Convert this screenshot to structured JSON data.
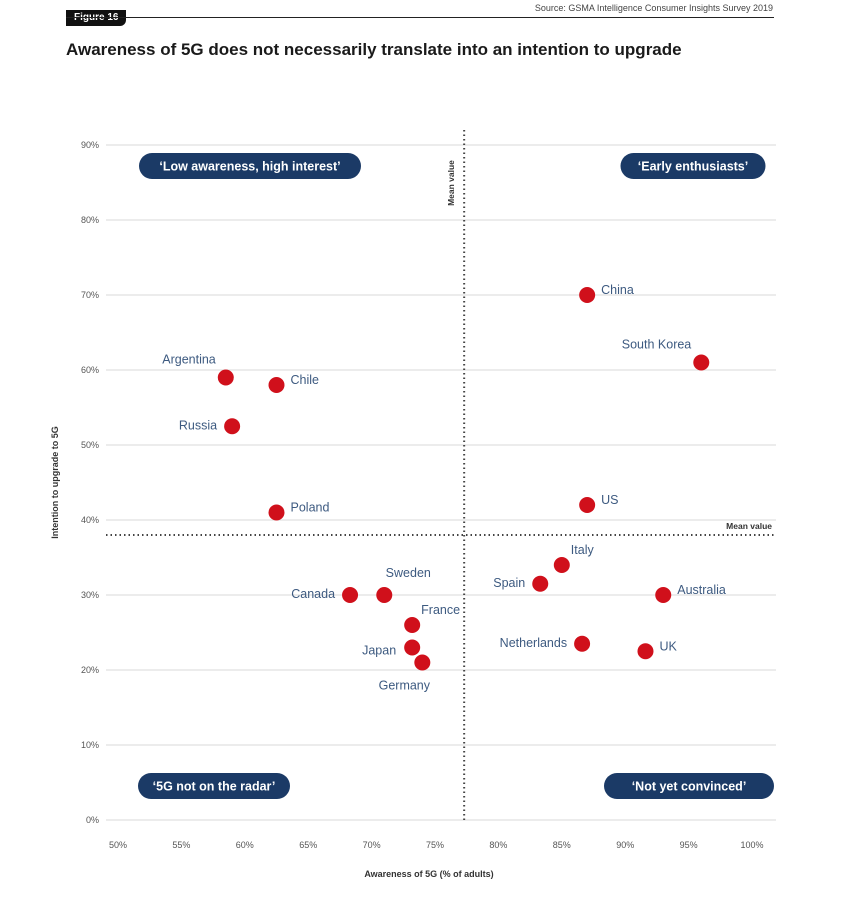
{
  "figure_badge": "Figure 16",
  "source": "Source: GSMA Intelligence Consumer Insights Survey 2019",
  "title": "Awareness of 5G does not necessarily translate into an intention to upgrade",
  "colors": {
    "point": "#d0101b",
    "label": "#3d5a80",
    "pill": "#1b3a66",
    "grid": "#d9d9d9"
  },
  "chart_data": {
    "type": "scatter",
    "title": "Awareness of 5G does not necessarily translate into an intention to upgrade",
    "xlabel": "Awareness of 5G (% of adults)",
    "ylabel": "Intention to upgrade to 5G",
    "xlim": [
      50,
      100
    ],
    "ylim": [
      0,
      90
    ],
    "x_ticks": [
      50,
      55,
      60,
      65,
      70,
      75,
      80,
      85,
      90,
      95,
      100
    ],
    "x_tick_labels": [
      "50%",
      "55%",
      "60%",
      "65%",
      "70%",
      "75%",
      "80%",
      "85%",
      "90%",
      "95%",
      "100%"
    ],
    "y_ticks": [
      0,
      10,
      20,
      30,
      40,
      50,
      60,
      70,
      80,
      90
    ],
    "y_tick_labels": [
      "0%",
      "10%",
      "20%",
      "30%",
      "40%",
      "50%",
      "60%",
      "70%",
      "80%",
      "90%"
    ],
    "grid": "horizontal",
    "mean_x": 77.3,
    "mean_y": 38,
    "mean_label": "Mean value",
    "quadrants": [
      {
        "label": "‘Low awareness, high interest’",
        "position": "top-left"
      },
      {
        "label": "‘Early enthusiasts’",
        "position": "top-right"
      },
      {
        "label": "‘5G not on the radar’",
        "position": "bottom-left"
      },
      {
        "label": "‘Not yet convinced’",
        "position": "bottom-right"
      }
    ],
    "points": [
      {
        "name": "China",
        "x": 87,
        "y": 70,
        "label_side": "right"
      },
      {
        "name": "South Korea",
        "x": 96,
        "y": 61,
        "label_side": "left-above"
      },
      {
        "name": "US",
        "x": 87,
        "y": 42,
        "label_side": "right"
      },
      {
        "name": "Argentina",
        "x": 58.5,
        "y": 59,
        "label_side": "left-above"
      },
      {
        "name": "Chile",
        "x": 62.5,
        "y": 58,
        "label_side": "right"
      },
      {
        "name": "Russia",
        "x": 59,
        "y": 52.5,
        "label_side": "left"
      },
      {
        "name": "Poland",
        "x": 62.5,
        "y": 41,
        "label_side": "right"
      },
      {
        "name": "Italy",
        "x": 85,
        "y": 34,
        "label_side": "right-above"
      },
      {
        "name": "Spain",
        "x": 83.3,
        "y": 31.5,
        "label_side": "left"
      },
      {
        "name": "Australia",
        "x": 93,
        "y": 30,
        "label_side": "right"
      },
      {
        "name": "Netherlands",
        "x": 86.6,
        "y": 23.5,
        "label_side": "left"
      },
      {
        "name": "UK",
        "x": 91.6,
        "y": 22.5,
        "label_side": "right"
      },
      {
        "name": "Canada",
        "x": 68.3,
        "y": 30,
        "label_side": "left"
      },
      {
        "name": "Sweden",
        "x": 71,
        "y": 30,
        "label_side": "above"
      },
      {
        "name": "France",
        "x": 73.2,
        "y": 26,
        "label_side": "right-above"
      },
      {
        "name": "Japan",
        "x": 73.2,
        "y": 23,
        "label_side": "left-below"
      },
      {
        "name": "Germany",
        "x": 74,
        "y": 21,
        "label_side": "below"
      }
    ]
  }
}
